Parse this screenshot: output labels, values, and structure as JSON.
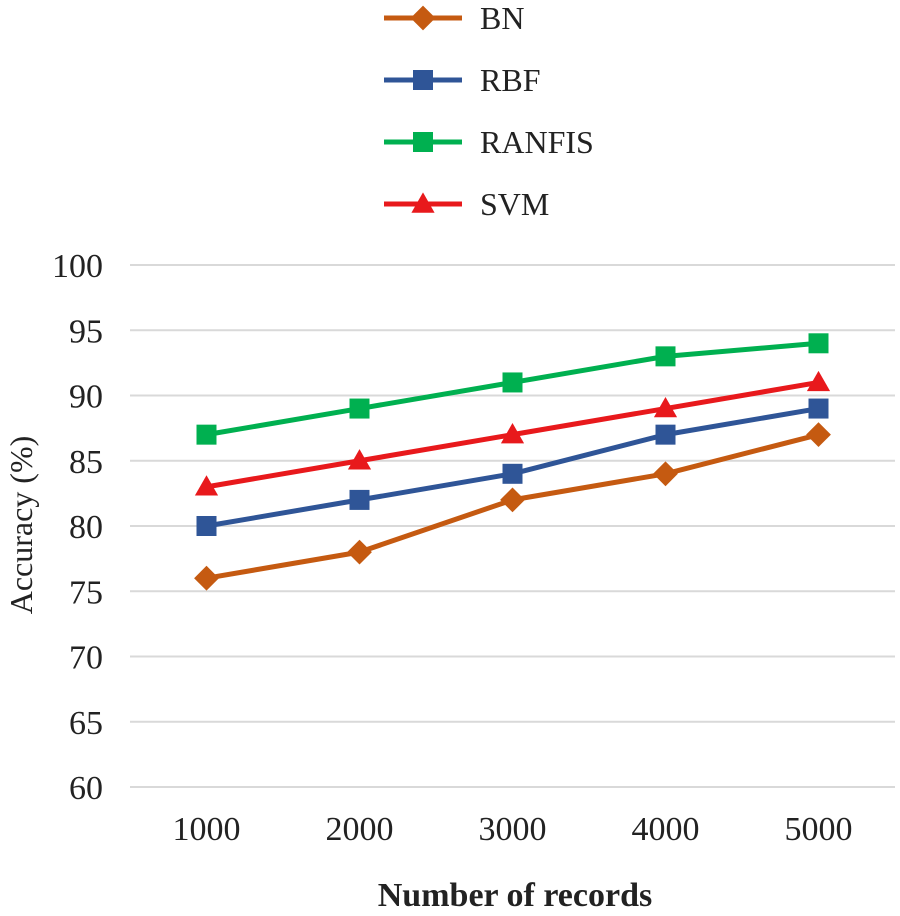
{
  "chart_data": {
    "type": "line",
    "title": "",
    "xlabel": "Number of records",
    "ylabel": "Accuracy (%)",
    "categories": [
      "1000",
      "2000",
      "3000",
      "4000",
      "5000"
    ],
    "ylim": [
      60,
      100
    ],
    "yticks": [
      60,
      65,
      70,
      75,
      80,
      85,
      90,
      95,
      100
    ],
    "grid": true,
    "legend_position": "top",
    "series": [
      {
        "name": "BN",
        "values": [
          76,
          78,
          82,
          84,
          87
        ],
        "color": "#c55a11",
        "marker": "diamond"
      },
      {
        "name": "RBF",
        "values": [
          80,
          82,
          84,
          87,
          89
        ],
        "color": "#2f5597",
        "marker": "square"
      },
      {
        "name": "RANFIS",
        "values": [
          87,
          89,
          91,
          93,
          94
        ],
        "color": "#00b050",
        "marker": "square"
      },
      {
        "name": "SVM",
        "values": [
          83,
          85,
          87,
          89,
          91
        ],
        "color": "#e8191c",
        "marker": "triangle"
      }
    ]
  }
}
